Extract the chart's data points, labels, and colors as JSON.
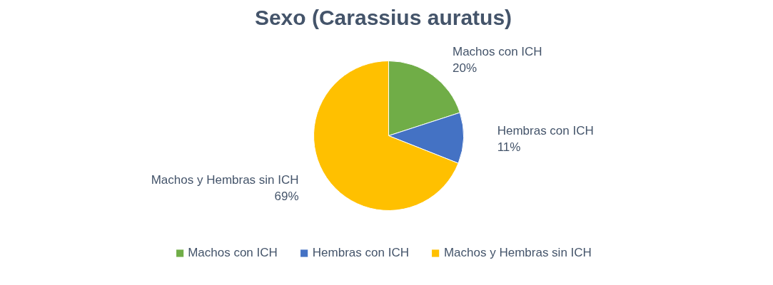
{
  "chart_data": {
    "type": "pie",
    "title": "Sexo (Carassius auratus)",
    "categories": [
      "Machos con ICH",
      "Hembras con ICH",
      "Machos y Hembras sin ICH"
    ],
    "values": [
      20,
      11,
      69
    ],
    "colors": [
      "#70ad47",
      "#4472c4",
      "#ffc000"
    ],
    "value_labels": [
      "20%",
      "11%",
      "69%"
    ],
    "legend": "bottom"
  }
}
